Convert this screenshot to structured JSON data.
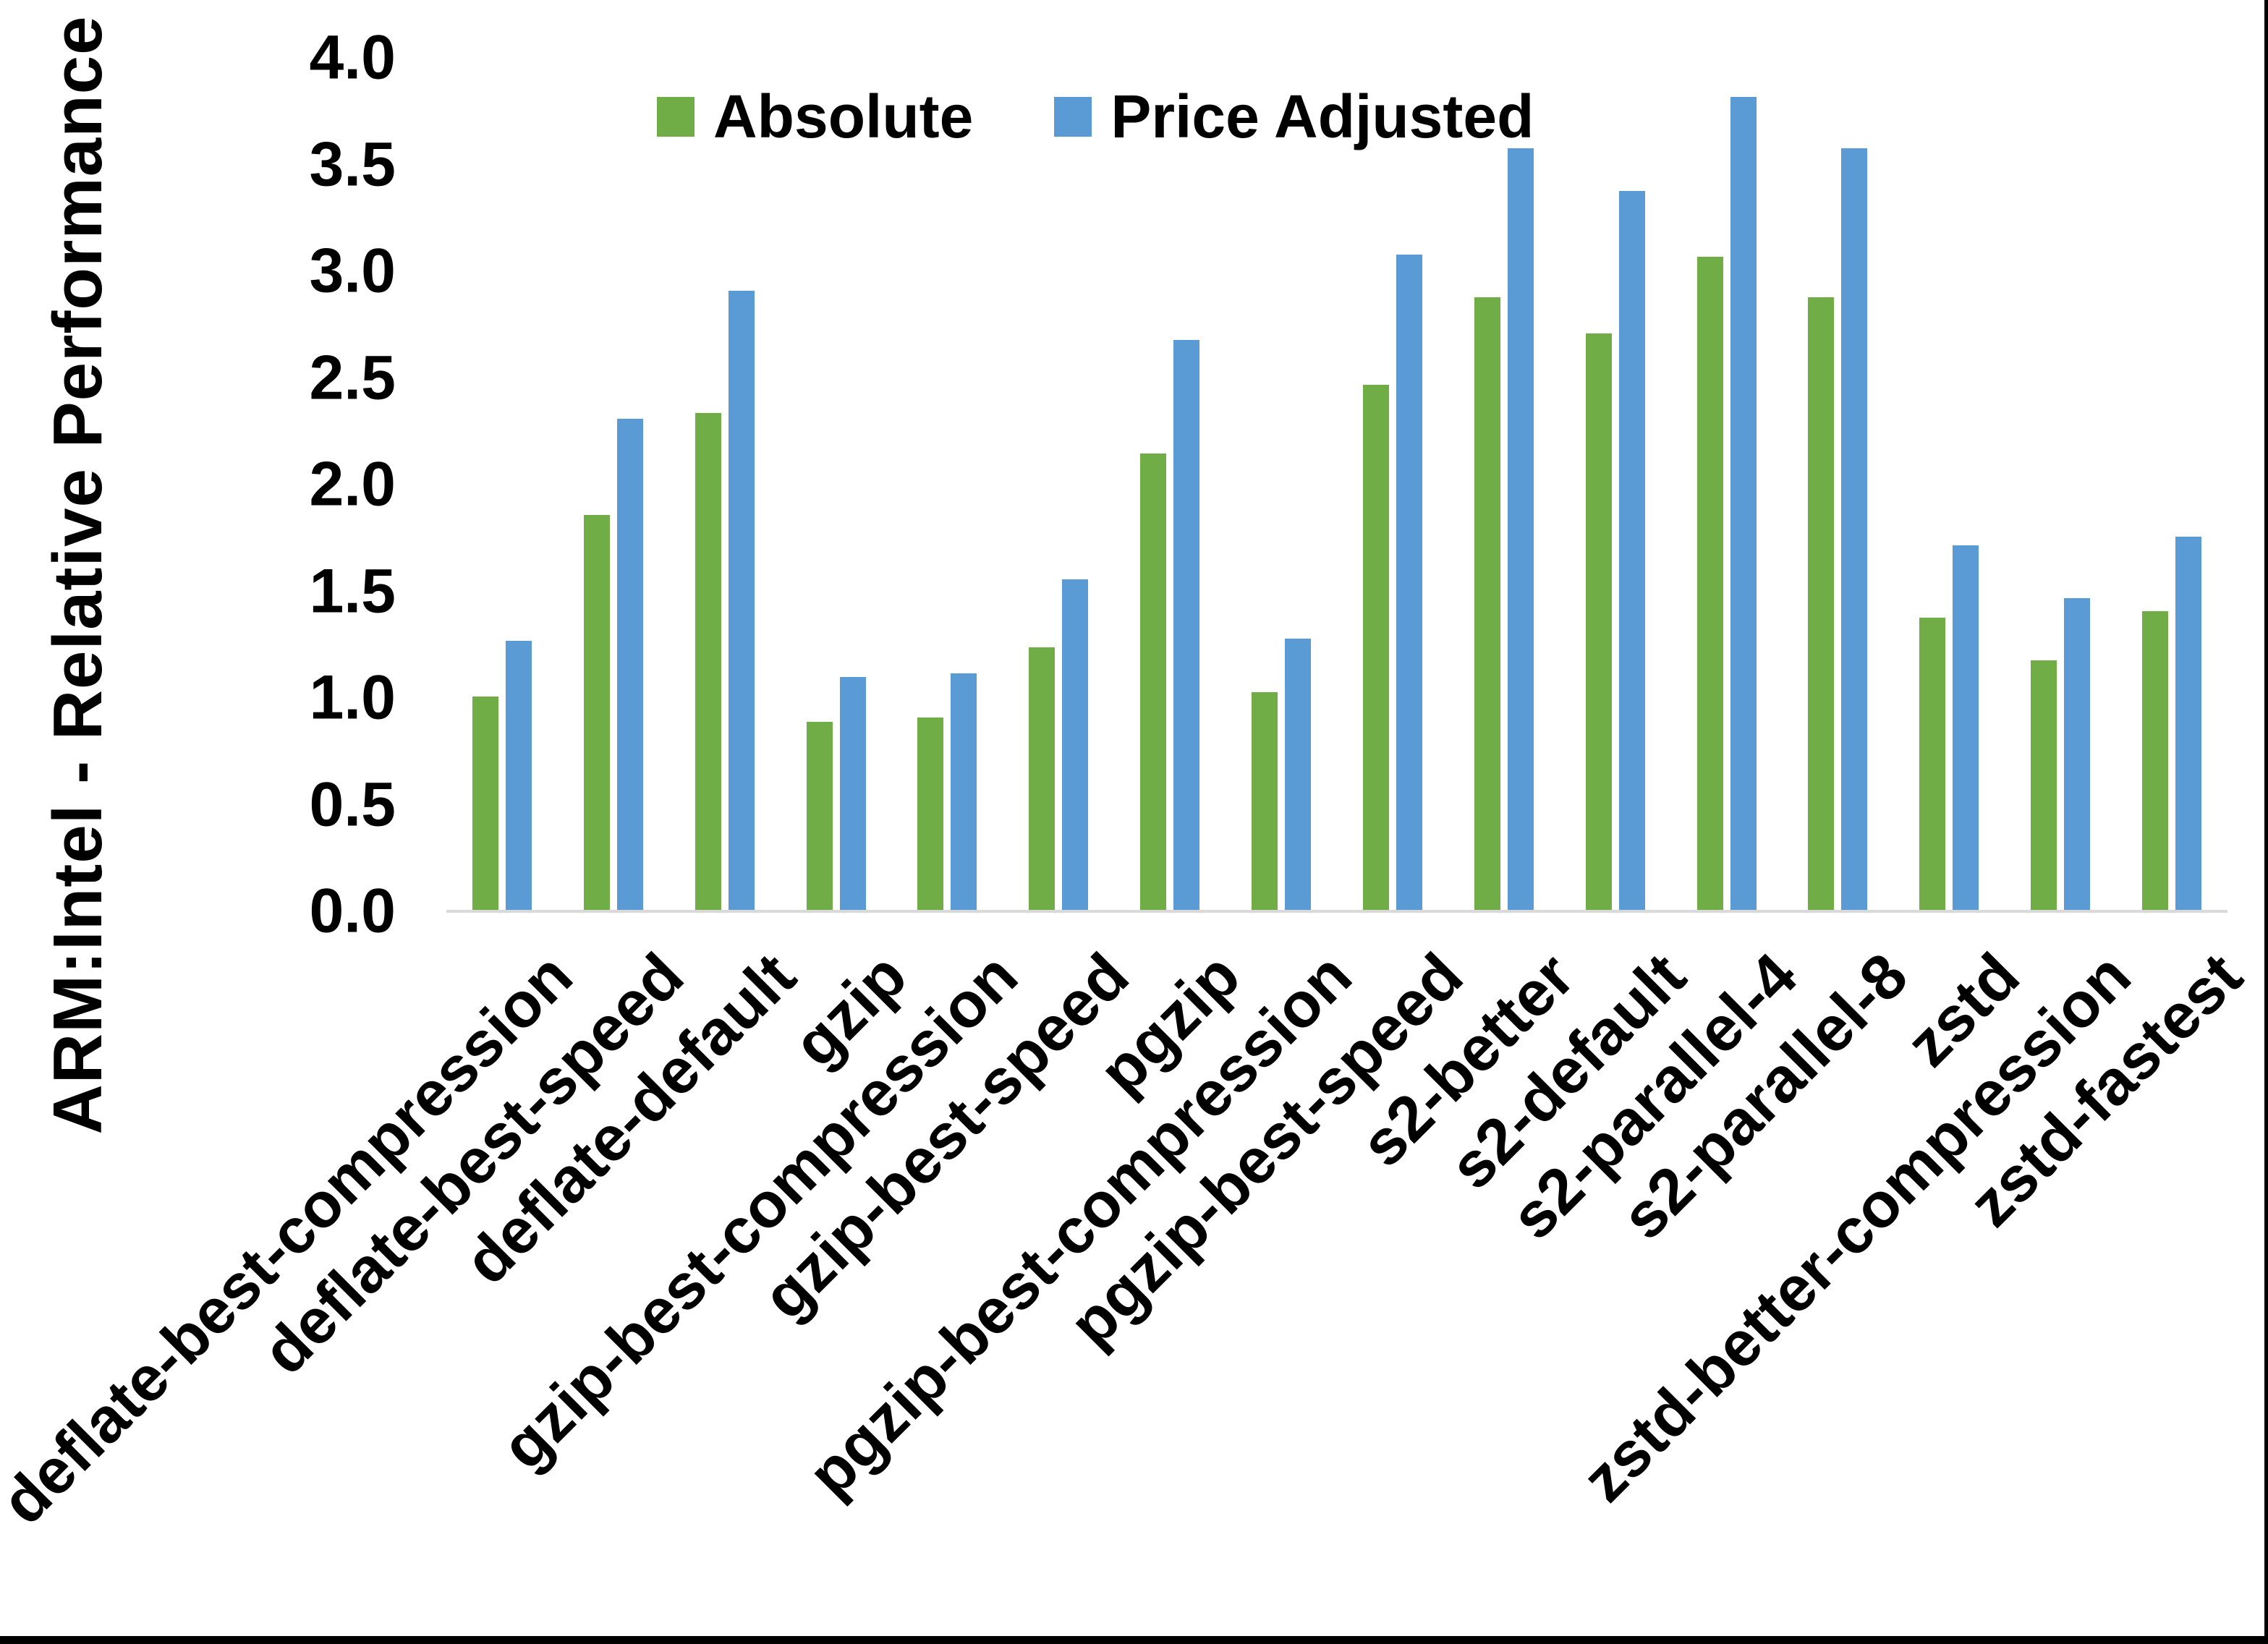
{
  "chart_data": {
    "type": "bar",
    "title": "",
    "ylabel": "ARM:Intel - Relative Performance",
    "xlabel": "",
    "categories": [
      "deflate-best-compression",
      "deflate-best-speed",
      "deflate-default",
      "gzip",
      "gzip-best-compression",
      "gzip-best-speed",
      "pgzip",
      "pgzip-best-compression",
      "pgzip-best-speed",
      "s2-better",
      "s2-default",
      "s2-parallel-4",
      "s2-parallel-8",
      "zstd",
      "zstd-better-compression",
      "zstd-fastest"
    ],
    "series": [
      {
        "name": "Absolute",
        "color": "#70AD47",
        "values": [
          1.0,
          1.85,
          2.33,
          0.88,
          0.9,
          1.23,
          2.14,
          1.02,
          2.46,
          2.87,
          2.7,
          3.06,
          2.87,
          1.37,
          1.17,
          1.4
        ]
      },
      {
        "name": "Price Adjusted",
        "color": "#5B9BD5",
        "values": [
          1.26,
          2.3,
          2.9,
          1.09,
          1.11,
          1.55,
          2.67,
          1.27,
          3.07,
          3.57,
          3.37,
          3.81,
          3.57,
          1.71,
          1.46,
          1.75
        ]
      }
    ],
    "ylim": [
      0.0,
      4.0
    ],
    "ytick_labels": [
      "0.0",
      "0.5",
      "1.0",
      "1.5",
      "2.0",
      "2.5",
      "3.0",
      "3.5",
      "4.0"
    ],
    "grid": false,
    "legend_position": "top-center",
    "axis_line_color": "#D9D9D9",
    "x_tick_rotation_deg": 45
  }
}
